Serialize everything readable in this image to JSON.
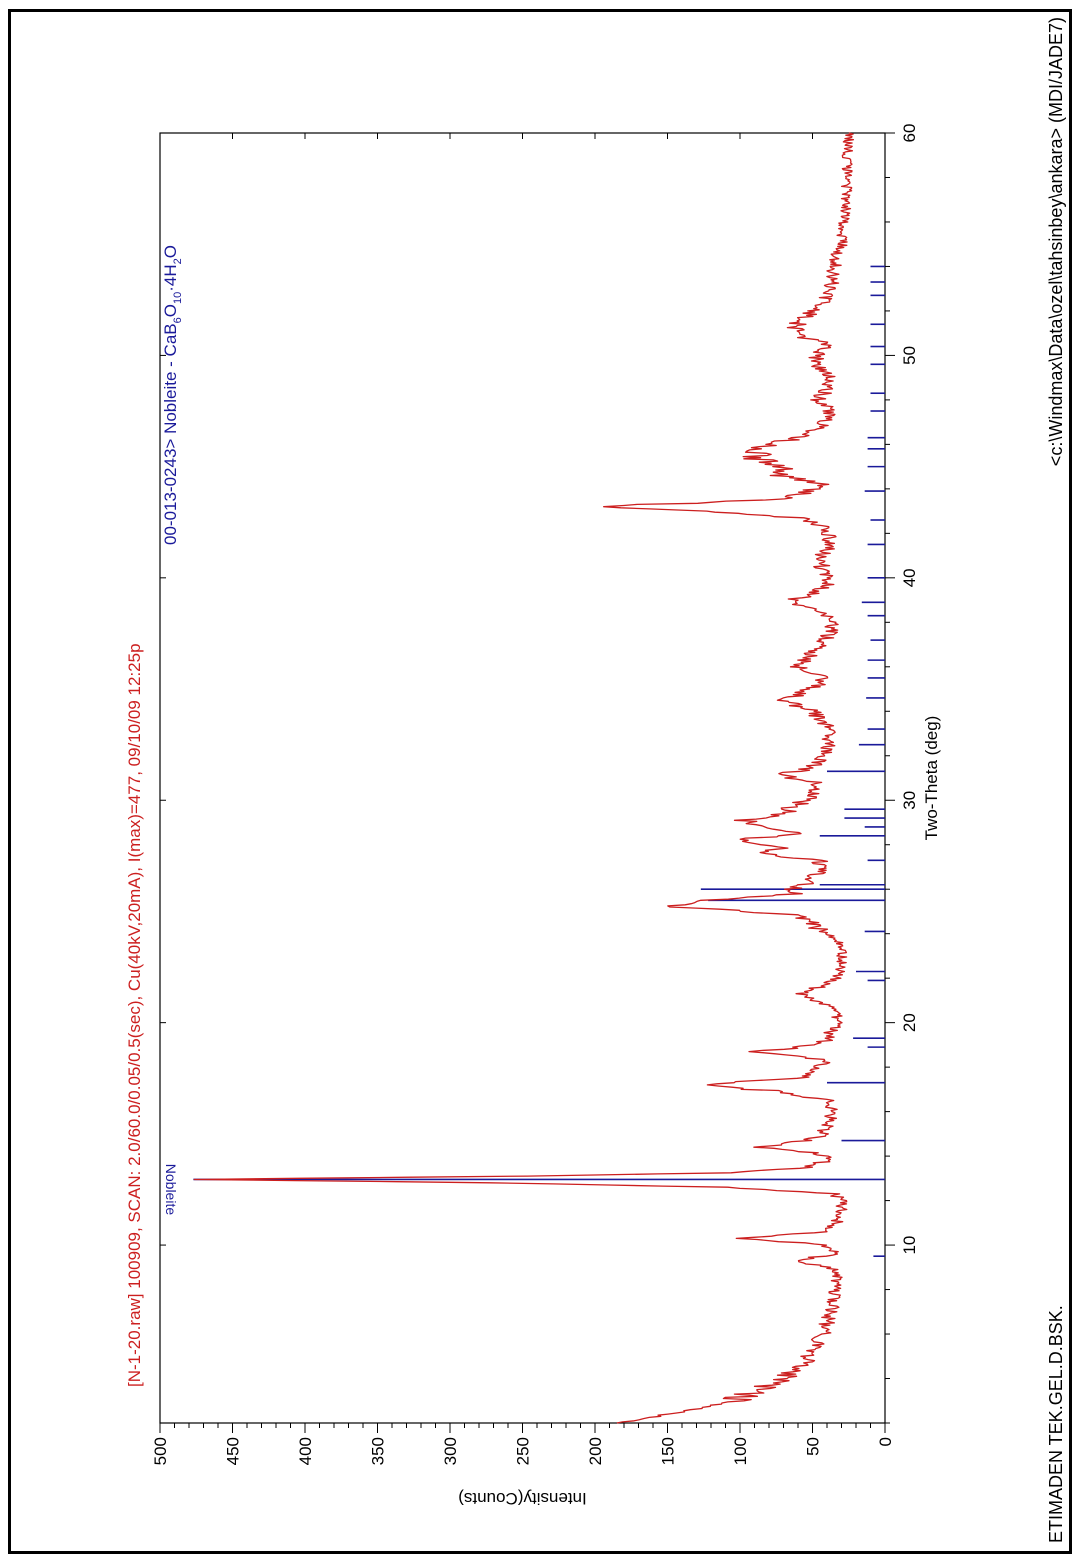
{
  "footer": {
    "left": "ETIMADEN TEK.GEL.D.BSK.",
    "right": "<c:\\Windmax\\Data\\ozel\\tahsinbey\\ankara> (MDI/JADE7)"
  },
  "chart_data": {
    "type": "line",
    "title": "[N-1-20.raw] 100909, SCAN: 2.0/60.0/0.05/0.5(sec), Cu(40kV,20mA), I(max)=477, 09/10/09 12:25p",
    "subtitle_prefix": "00-013-0243> Nobleite - CaB",
    "subtitle_sub1": "6",
    "subtitle_mid": "O",
    "subtitle_sub2": "10",
    "subtitle_suffix": "·4H",
    "subtitle_sub3": "2",
    "subtitle_end": "O",
    "xlabel": "Two-Theta (deg)",
    "ylabel": "Intensity(Counts)",
    "xlim": [
      2,
      60
    ],
    "ylim": [
      0,
      500
    ],
    "xticks": [
      10,
      20,
      30,
      40,
      50,
      60
    ],
    "yticks": [
      0,
      50,
      100,
      150,
      200,
      250,
      300,
      350,
      400,
      450,
      500
    ],
    "grid": false,
    "colors": {
      "pattern": "#cc1f1f",
      "reference": "#1a1a9a",
      "axes": "#000000"
    },
    "series": [
      {
        "type": "line",
        "x": [
          2.0,
          2.5,
          3.0,
          3.5,
          4.0,
          4.5,
          5.0,
          5.5,
          6.0,
          6.5,
          7.0,
          7.5,
          8.0,
          8.5,
          9.0,
          9.3,
          9.6,
          10.0,
          10.3,
          10.6,
          10.9,
          11.2,
          11.6,
          12.0,
          12.3,
          12.6,
          12.8,
          12.95,
          13.1,
          13.25,
          13.5,
          13.8,
          14.1,
          14.4,
          14.7,
          15.0,
          15.5,
          16.0,
          16.5,
          16.9,
          17.2,
          17.5,
          17.9,
          18.3,
          18.7,
          19.0,
          19.3,
          19.7,
          20.2,
          20.8,
          21.3,
          21.7,
          22.0,
          22.4,
          22.9,
          23.3,
          23.7,
          24.1,
          24.6,
          24.9,
          25.2,
          25.5,
          25.8,
          26.1,
          26.5,
          26.9,
          27.3,
          27.6,
          27.9,
          28.2,
          28.5,
          28.8,
          29.1,
          29.4,
          29.7,
          30.0,
          30.4,
          30.8,
          31.1,
          31.5,
          32.0,
          32.5,
          33.0,
          33.5,
          34.0,
          34.5,
          35.0,
          35.5,
          36.0,
          36.5,
          37.0,
          37.5,
          38.0,
          38.5,
          38.9,
          39.3,
          39.8,
          40.3,
          40.8,
          41.3,
          41.8,
          42.3,
          42.7,
          43.0,
          43.2,
          43.5,
          43.8,
          44.2,
          44.6,
          45.0,
          45.4,
          45.8,
          46.2,
          46.6,
          47.0,
          47.5,
          48.0,
          48.5,
          49.0,
          49.5,
          50.0,
          50.5,
          51.0,
          51.5,
          52.0,
          52.5,
          53.0,
          53.5,
          54.0,
          54.5,
          55.0,
          56.0,
          57.0,
          58.0,
          59.0,
          60.0
        ],
        "y": [
          185,
          140,
          105,
          85,
          70,
          60,
          52,
          47,
          43,
          40,
          37,
          36,
          35,
          34,
          38,
          62,
          36,
          40,
          98,
          40,
          34,
          32,
          30,
          29,
          36,
          110,
          270,
          477,
          250,
          110,
          55,
          40,
          45,
          87,
          52,
          43,
          38,
          36,
          40,
          72,
          130,
          60,
          50,
          42,
          88,
          45,
          40,
          36,
          32,
          40,
          58,
          42,
          34,
          32,
          30,
          28,
          33,
          45,
          50,
          70,
          150,
          125,
          65,
          60,
          50,
          42,
          46,
          85,
          68,
          102,
          60,
          92,
          100,
          72,
          62,
          55,
          48,
          45,
          72,
          50,
          42,
          40,
          38,
          42,
          50,
          70,
          50,
          42,
          60,
          52,
          44,
          38,
          36,
          45,
          68,
          48,
          38,
          42,
          46,
          40,
          38,
          42,
          60,
          120,
          200,
          80,
          55,
          45,
          70,
          68,
          92,
          88,
          65,
          50,
          42,
          38,
          46,
          40,
          38,
          45,
          48,
          40,
          65,
          58,
          48,
          42,
          38,
          36,
          35,
          34,
          30,
          28,
          27,
          26,
          26,
          25
        ]
      }
    ],
    "reference_lines": {
      "name": "Nobleite",
      "x": [
        9.5,
        12.95,
        14.7,
        17.3,
        18.9,
        19.3,
        21.9,
        22.3,
        24.1,
        25.5,
        26.0,
        26.2,
        27.3,
        28.4,
        28.8,
        29.2,
        29.6,
        31.3,
        32.5,
        33.2,
        34.6,
        35.5,
        36.3,
        37.2,
        38.3,
        38.9,
        40.0,
        41.5,
        42.6,
        43.9,
        45.0,
        45.8,
        46.3,
        47.5,
        48.3,
        49.6,
        50.4,
        51.4,
        52.7,
        53.3,
        54.0
      ],
      "y": [
        8,
        477,
        30,
        40,
        12,
        22,
        12,
        20,
        14,
        122,
        127,
        45,
        12,
        45,
        14,
        28,
        28,
        40,
        18,
        12,
        13,
        12,
        12,
        10,
        12,
        16,
        12,
        12,
        10,
        14,
        12,
        12,
        12,
        10,
        10,
        10,
        10,
        10,
        10,
        10,
        10
      ]
    },
    "peak_label": "Nobleite"
  }
}
